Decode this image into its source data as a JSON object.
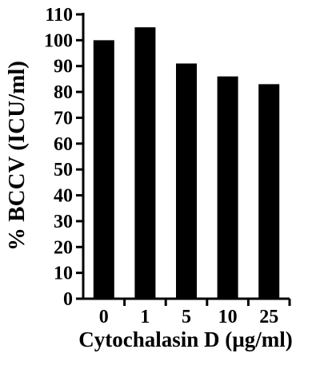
{
  "chart_data": {
    "type": "bar",
    "categories": [
      "0",
      "1",
      "5",
      "10",
      "25"
    ],
    "values": [
      100,
      105,
      91,
      86,
      83
    ],
    "ylabel": "% BCCV (ICU/ml)",
    "xlabel": "Cytochalasin D (µg/ml)",
    "ylim": [
      0,
      110
    ],
    "yticks": [
      0,
      10,
      20,
      30,
      40,
      50,
      60,
      70,
      80,
      90,
      100,
      110
    ],
    "grid": false,
    "bar_color": "#000000"
  }
}
